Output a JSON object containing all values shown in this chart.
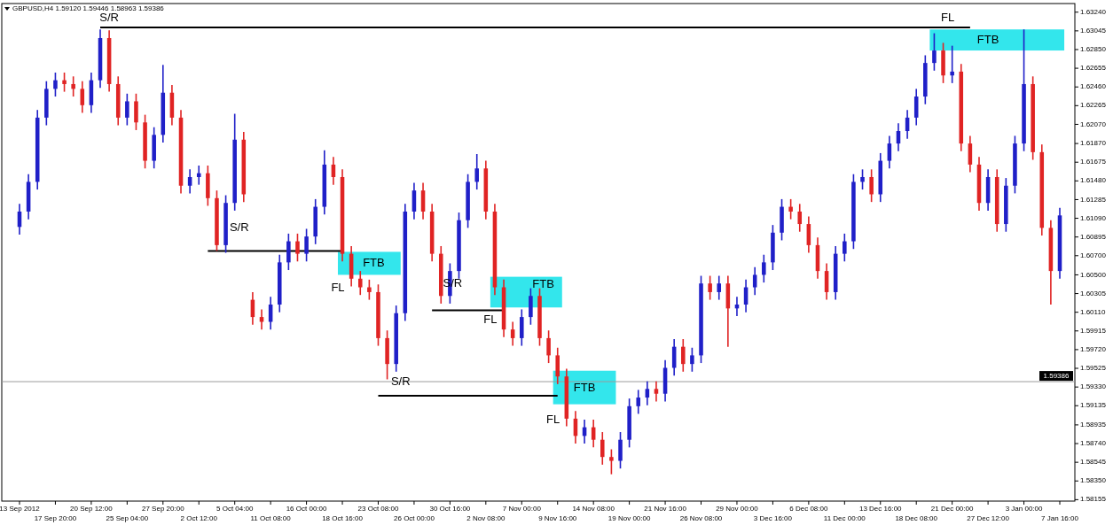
{
  "chart_data": {
    "type": "candlestick",
    "title": "GBPUSD,H4  1.59120 1.59446 1.58963 1.59386",
    "categories": [
      "13 Sep 2012",
      null,
      null,
      null,
      "17 Sep 20:00",
      null,
      null,
      null,
      "20 Sep 12:00",
      null,
      null,
      null,
      "25 Sep 04:00",
      null,
      null,
      null,
      "27 Sep 20:00",
      null,
      null,
      null,
      "2 Oct 12:00",
      null,
      null,
      null,
      "5 Oct 04:00",
      null,
      null,
      null,
      "11 Oct 08:00",
      null,
      null,
      null,
      "16 Oct 00:00",
      null,
      null,
      null,
      "18 Oct 16:00",
      null,
      null,
      null,
      "23 Oct 08:00",
      null,
      null,
      null,
      "26 Oct 00:00",
      null,
      null,
      null,
      "30 Oct 16:00",
      null,
      null,
      null,
      "2 Nov 08:00",
      null,
      null,
      null,
      "7 Nov 00:00",
      null,
      null,
      null,
      "9 Nov 16:00",
      null,
      null,
      null,
      "14 Nov 08:00",
      null,
      null,
      null,
      "19 Nov 00:00",
      null,
      null,
      null,
      "21 Nov 16:00",
      null,
      null,
      null,
      "26 Nov 08:00",
      null,
      null,
      null,
      "29 Nov 00:00",
      null,
      null,
      null,
      "3 Dec 16:00",
      null,
      null,
      null,
      "6 Dec 08:00",
      null,
      null,
      null,
      "11 Dec 00:00",
      null,
      null,
      null,
      "13 Dec 16:00",
      null,
      null,
      null,
      "18 Dec 08:00",
      null,
      null,
      null,
      "21 Dec 00:00",
      null,
      null,
      null,
      "27 Dec 12:00",
      null,
      null,
      null,
      "3 Jan 00:00",
      null,
      null,
      null,
      "7 Jan 16:00"
    ],
    "ohlc": [
      [
        1.61,
        1.6124,
        1.6092,
        1.6116
      ],
      [
        1.6116,
        1.6155,
        1.6108,
        1.6147
      ],
      [
        1.6147,
        1.6222,
        1.6139,
        1.6214
      ],
      [
        1.6214,
        1.6252,
        1.6206,
        1.6244
      ],
      [
        1.6244,
        1.6261,
        1.6236,
        1.6253
      ],
      [
        1.6253,
        1.6261,
        1.6241,
        1.6249
      ],
      [
        1.6249,
        1.6257,
        1.6236,
        1.6244
      ],
      [
        1.6244,
        1.6252,
        1.6219,
        1.6227
      ],
      [
        1.6227,
        1.6261,
        1.6219,
        1.6253
      ],
      [
        1.6253,
        1.6306,
        1.6245,
        1.6297
      ],
      [
        1.6297,
        1.6305,
        1.6241,
        1.6249
      ],
      [
        1.6249,
        1.6257,
        1.6206,
        1.6214
      ],
      [
        1.6214,
        1.6239,
        1.6206,
        1.6231
      ],
      [
        1.6231,
        1.6239,
        1.6201,
        1.6209
      ],
      [
        1.6209,
        1.6217,
        1.6161,
        1.6169
      ],
      [
        1.6169,
        1.6204,
        1.6161,
        1.6196
      ],
      [
        1.6196,
        1.6269,
        1.6188,
        1.624
      ],
      [
        1.624,
        1.6248,
        1.6206,
        1.6214
      ],
      [
        1.6214,
        1.6222,
        1.6135,
        1.6143
      ],
      [
        1.6143,
        1.616,
        1.6135,
        1.6152
      ],
      [
        1.6152,
        1.6164,
        1.6144,
        1.6156
      ],
      [
        1.6156,
        1.6164,
        1.6122,
        1.613
      ],
      [
        1.613,
        1.6138,
        1.6075,
        1.6081
      ],
      [
        1.6081,
        1.6133,
        1.6073,
        1.6125
      ],
      [
        1.6125,
        1.6218,
        1.6117,
        1.6191
      ],
      [
        1.6191,
        1.6199,
        1.6126,
        1.6134
      ],
      [
        1.6024,
        1.6032,
        1.5998,
        1.6006
      ],
      [
        1.6006,
        1.6014,
        1.5993,
        1.6001
      ],
      [
        1.6001,
        1.6027,
        1.5993,
        1.6019
      ],
      [
        1.6019,
        1.6071,
        1.6011,
        1.6063
      ],
      [
        1.6063,
        1.6093,
        1.6055,
        1.6085
      ],
      [
        1.6085,
        1.6093,
        1.6064,
        1.6072
      ],
      [
        1.6072,
        1.6098,
        1.6064,
        1.609
      ],
      [
        1.609,
        1.6129,
        1.6082,
        1.6121
      ],
      [
        1.6121,
        1.618,
        1.6113,
        1.6165
      ],
      [
        1.6165,
        1.6173,
        1.6144,
        1.6152
      ],
      [
        1.6152,
        1.616,
        1.6064,
        1.6072
      ],
      [
        1.6072,
        1.608,
        1.6038,
        1.6046
      ],
      [
        1.6046,
        1.6054,
        1.6029,
        1.6037
      ],
      [
        1.6037,
        1.6045,
        1.6024,
        1.6032
      ],
      [
        1.6032,
        1.604,
        1.5976,
        1.5984
      ],
      [
        1.5984,
        1.5992,
        1.5941,
        1.5957
      ],
      [
        1.5957,
        1.6018,
        1.5949,
        1.601
      ],
      [
        1.601,
        1.6124,
        1.6002,
        1.6116
      ],
      [
        1.6116,
        1.6146,
        1.6108,
        1.6138
      ],
      [
        1.6138,
        1.6146,
        1.6108,
        1.6116
      ],
      [
        1.6116,
        1.6124,
        1.6064,
        1.6072
      ],
      [
        1.6072,
        1.608,
        1.602,
        1.6028
      ],
      [
        1.6028,
        1.6062,
        1.602,
        1.6054
      ],
      [
        1.6054,
        1.6115,
        1.6046,
        1.6107
      ],
      [
        1.6107,
        1.6155,
        1.6099,
        1.6147
      ],
      [
        1.6147,
        1.6176,
        1.6139,
        1.6161
      ],
      [
        1.6161,
        1.6169,
        1.6108,
        1.6116
      ],
      [
        1.6116,
        1.6124,
        1.6029,
        1.6037
      ],
      [
        1.6037,
        1.6045,
        1.5985,
        1.5993
      ],
      [
        1.5993,
        1.6001,
        1.5976,
        1.5984
      ],
      [
        1.5984,
        1.6014,
        1.5976,
        1.6006
      ],
      [
        1.6006,
        1.6036,
        1.5998,
        1.6028
      ],
      [
        1.6028,
        1.6036,
        1.5976,
        1.5984
      ],
      [
        1.5984,
        1.5992,
        1.5958,
        1.5966
      ],
      [
        1.5966,
        1.5974,
        1.5936,
        1.5944
      ],
      [
        1.5944,
        1.5952,
        1.5892,
        1.59
      ],
      [
        1.59,
        1.5908,
        1.5874,
        1.5882
      ],
      [
        1.5882,
        1.5899,
        1.5874,
        1.5891
      ],
      [
        1.5891,
        1.5899,
        1.587,
        1.5878
      ],
      [
        1.5878,
        1.5886,
        1.5852,
        1.586
      ],
      [
        1.586,
        1.5868,
        1.5842,
        1.5856
      ],
      [
        1.5856,
        1.5886,
        1.5848,
        1.5878
      ],
      [
        1.5878,
        1.5921,
        1.587,
        1.5913
      ],
      [
        1.5913,
        1.593,
        1.5905,
        1.5922
      ],
      [
        1.5922,
        1.5939,
        1.5914,
        1.5931
      ],
      [
        1.5931,
        1.5939,
        1.5918,
        1.5926
      ],
      [
        1.5926,
        1.5961,
        1.5918,
        1.5953
      ],
      [
        1.5953,
        1.5983,
        1.5945,
        1.5975
      ],
      [
        1.5975,
        1.5983,
        1.5949,
        1.5957
      ],
      [
        1.5957,
        1.5974,
        1.5949,
        1.5966
      ],
      [
        1.5966,
        1.6049,
        1.5958,
        1.6041
      ],
      [
        1.6041,
        1.6049,
        1.6024,
        1.6032
      ],
      [
        1.6032,
        1.6049,
        1.6024,
        1.6041
      ],
      [
        1.6041,
        1.6049,
        1.5975,
        1.6015
      ],
      [
        1.6015,
        1.6027,
        1.6007,
        1.6019
      ],
      [
        1.6019,
        1.6045,
        1.6011,
        1.6037
      ],
      [
        1.6037,
        1.6058,
        1.6029,
        1.605
      ],
      [
        1.605,
        1.6071,
        1.6042,
        1.6063
      ],
      [
        1.6063,
        1.6102,
        1.6055,
        1.6094
      ],
      [
        1.6094,
        1.6129,
        1.6086,
        1.6121
      ],
      [
        1.6121,
        1.6129,
        1.6108,
        1.6116
      ],
      [
        1.6116,
        1.6124,
        1.6095,
        1.6103
      ],
      [
        1.6103,
        1.6111,
        1.6073,
        1.6081
      ],
      [
        1.6081,
        1.6089,
        1.6046,
        1.6054
      ],
      [
        1.6054,
        1.6062,
        1.6024,
        1.6032
      ],
      [
        1.6032,
        1.608,
        1.6024,
        1.6072
      ],
      [
        1.6072,
        1.6093,
        1.6064,
        1.6085
      ],
      [
        1.6085,
        1.6155,
        1.6077,
        1.6147
      ],
      [
        1.6147,
        1.616,
        1.6139,
        1.6152
      ],
      [
        1.6152,
        1.616,
        1.6126,
        1.6134
      ],
      [
        1.6134,
        1.6177,
        1.6126,
        1.6169
      ],
      [
        1.6169,
        1.6195,
        1.6161,
        1.6187
      ],
      [
        1.6187,
        1.6208,
        1.6179,
        1.62
      ],
      [
        1.62,
        1.6222,
        1.6192,
        1.6214
      ],
      [
        1.6214,
        1.6244,
        1.6206,
        1.6236
      ],
      [
        1.6236,
        1.6279,
        1.6228,
        1.6271
      ],
      [
        1.6271,
        1.6302,
        1.6263,
        1.6284
      ],
      [
        1.6284,
        1.6292,
        1.625,
        1.6258
      ],
      [
        1.6258,
        1.6289,
        1.625,
        1.6262
      ],
      [
        1.6262,
        1.627,
        1.6179,
        1.6187
      ],
      [
        1.6187,
        1.6195,
        1.6157,
        1.6165
      ],
      [
        1.6165,
        1.6173,
        1.6117,
        1.6125
      ],
      [
        1.6125,
        1.616,
        1.6117,
        1.6152
      ],
      [
        1.6152,
        1.616,
        1.6095,
        1.6103
      ],
      [
        1.6103,
        1.6151,
        1.6095,
        1.6143
      ],
      [
        1.6143,
        1.6195,
        1.6135,
        1.6187
      ],
      [
        1.6187,
        1.6306,
        1.6179,
        1.6249
      ],
      [
        1.6249,
        1.6257,
        1.617,
        1.6178
      ],
      [
        1.6178,
        1.6186,
        1.6091,
        1.6099
      ],
      [
        1.6099,
        1.6107,
        1.6019,
        1.6054
      ],
      [
        1.6054,
        1.612,
        1.6046,
        1.6112
      ]
    ],
    "colors": [
      "#2020c8",
      "#2020c8",
      "#2020c8",
      "#2020c8",
      "#2020c8",
      "#e02424",
      "#e02424",
      "#e02424",
      "#2020c8",
      "#2020c8",
      "#e02424",
      "#e02424",
      "#2020c8",
      "#e02424",
      "#e02424",
      "#2020c8",
      "#2020c8",
      "#e02424",
      "#e02424",
      "#2020c8",
      "#2020c8",
      "#e02424",
      "#e02424",
      "#2020c8",
      "#2020c8",
      "#e02424",
      "#e02424",
      "#e02424",
      "#2020c8",
      "#2020c8",
      "#2020c8",
      "#e02424",
      "#2020c8",
      "#2020c8",
      "#2020c8",
      "#e02424",
      "#e02424",
      "#e02424",
      "#e02424",
      "#e02424",
      "#e02424",
      "#e02424",
      "#2020c8",
      "#2020c8",
      "#2020c8",
      "#e02424",
      "#e02424",
      "#e02424",
      "#2020c8",
      "#2020c8",
      "#2020c8",
      "#2020c8",
      "#e02424",
      "#e02424",
      "#e02424",
      "#e02424",
      "#2020c8",
      "#2020c8",
      "#e02424",
      "#e02424",
      "#e02424",
      "#e02424",
      "#e02424",
      "#2020c8",
      "#e02424",
      "#e02424",
      "#e02424",
      "#2020c8",
      "#2020c8",
      "#2020c8",
      "#2020c8",
      "#e02424",
      "#2020c8",
      "#2020c8",
      "#e02424",
      "#2020c8",
      "#2020c8",
      "#e02424",
      "#2020c8",
      "#e02424",
      "#2020c8",
      "#2020c8",
      "#2020c8",
      "#2020c8",
      "#2020c8",
      "#2020c8",
      "#e02424",
      "#e02424",
      "#e02424",
      "#e02424",
      "#e02424",
      "#2020c8",
      "#2020c8",
      "#2020c8",
      "#2020c8",
      "#e02424",
      "#2020c8",
      "#2020c8",
      "#2020c8",
      "#2020c8",
      "#2020c8",
      "#2020c8",
      "#2020c8",
      "#e02424",
      "#2020c8",
      "#e02424",
      "#e02424",
      "#e02424",
      "#2020c8",
      "#e02424",
      "#2020c8",
      "#2020c8",
      "#2020c8",
      "#e02424",
      "#e02424",
      "#e02424",
      "#2020c8"
    ],
    "series": [
      {
        "type": "line",
        "color": "#000000",
        "values": [
          null,
          null,
          null,
          null,
          null,
          null,
          null,
          null,
          null,
          1.6308,
          1.6308,
          1.6308,
          1.6308,
          1.6308,
          1.6308,
          1.6308,
          1.6308,
          1.6308,
          1.6308,
          1.6308,
          1.6308,
          1.6308,
          1.6308,
          1.6308,
          1.6308,
          1.6308,
          1.6308,
          1.6308,
          1.6308,
          1.6308,
          1.6308,
          1.6308,
          1.6308,
          1.6308,
          1.6308,
          1.6308,
          1.6308,
          1.6308,
          1.6308,
          1.6308,
          1.6308,
          1.6308,
          1.6308,
          1.6308,
          1.6308,
          1.6308,
          1.6308,
          1.6308,
          1.6308,
          1.6308,
          1.6308,
          1.6308,
          1.6308,
          1.6308,
          1.6308,
          1.6308,
          1.6308,
          1.6308,
          1.6308,
          1.6308,
          1.6308,
          1.6308,
          1.6308,
          1.6308,
          1.6308,
          1.6308,
          1.6308,
          1.6308,
          1.6308,
          1.6308,
          1.6308,
          1.6308,
          1.6308,
          1.6308,
          1.6308,
          1.6308,
          1.6308,
          1.6308,
          1.6308,
          1.6308,
          1.6308,
          1.6308,
          1.6308,
          1.6308,
          1.6308,
          1.6308,
          1.6308,
          1.6308,
          1.6308,
          1.6308,
          1.6308,
          1.6308,
          1.6308,
          1.6308,
          1.6308,
          1.6308,
          1.6308,
          1.6308,
          1.6308,
          1.6308,
          1.6308,
          1.6308,
          1.6308,
          1.6308,
          1.6308,
          1.6308,
          1.6308,
          null,
          null,
          null,
          null,
          null,
          null,
          null,
          null,
          null,
          null
        ]
      },
      {
        "type": "line",
        "color": "#000000",
        "values": [
          null,
          null,
          null,
          null,
          null,
          null,
          null,
          null,
          null,
          null,
          null,
          null,
          null,
          null,
          null,
          null,
          null,
          null,
          null,
          null,
          null,
          1.6075,
          1.6075,
          1.6075,
          1.6075,
          1.6075,
          1.6075,
          1.6075,
          1.6075,
          1.6075,
          1.6075,
          1.6075,
          1.6075,
          1.6075,
          1.6075,
          1.6075,
          1.6075,
          null,
          null,
          null,
          null,
          null,
          null,
          null,
          null,
          null,
          null,
          null,
          null,
          null,
          null,
          null,
          null,
          null,
          null,
          null,
          null,
          null,
          null,
          null,
          null,
          null,
          null,
          null,
          null,
          null,
          null,
          null,
          null,
          null,
          null,
          null,
          null,
          null,
          null,
          null,
          null,
          null,
          null,
          null,
          null,
          null,
          null,
          null,
          null,
          null,
          null,
          null,
          null,
          null,
          null,
          null,
          null,
          null,
          null,
          null,
          null,
          null,
          null,
          null,
          null,
          null,
          null,
          null,
          null,
          null,
          null,
          null,
          null,
          null,
          null,
          null,
          null,
          null,
          null,
          null,
          null
        ]
      },
      {
        "type": "line",
        "color": "#000000",
        "values": [
          null,
          null,
          null,
          null,
          null,
          null,
          null,
          null,
          null,
          null,
          null,
          null,
          null,
          null,
          null,
          null,
          null,
          null,
          null,
          null,
          null,
          null,
          null,
          null,
          null,
          null,
          null,
          null,
          null,
          null,
          null,
          null,
          null,
          null,
          null,
          null,
          null,
          null,
          null,
          null,
          null,
          null,
          null,
          null,
          null,
          null,
          1.6013,
          1.6013,
          1.6013,
          1.6013,
          1.6013,
          1.6013,
          1.6013,
          1.6013,
          1.6013,
          null,
          null,
          null,
          null,
          null,
          null,
          null,
          null,
          null,
          null,
          null,
          null,
          null,
          null,
          null,
          null,
          null,
          null,
          null,
          null,
          null,
          null,
          null,
          null,
          null,
          null,
          null,
          null,
          null,
          null,
          null,
          null,
          null,
          null,
          null,
          null,
          null,
          null,
          null,
          null,
          null,
          null,
          null,
          null,
          null,
          null,
          null,
          null,
          null,
          null,
          null,
          null,
          null,
          null,
          null,
          null,
          null,
          null,
          null,
          null,
          null,
          null
        ]
      },
      {
        "type": "line",
        "color": "#000000",
        "values": [
          null,
          null,
          null,
          null,
          null,
          null,
          null,
          null,
          null,
          null,
          null,
          null,
          null,
          null,
          null,
          null,
          null,
          null,
          null,
          null,
          null,
          null,
          null,
          null,
          null,
          null,
          null,
          null,
          null,
          null,
          null,
          null,
          null,
          null,
          null,
          null,
          null,
          null,
          null,
          null,
          1.5924,
          1.5924,
          1.5924,
          1.5924,
          1.5924,
          1.5924,
          1.5924,
          1.5924,
          1.5924,
          1.5924,
          1.5924,
          1.5924,
          1.5924,
          1.5924,
          1.5924,
          1.5924,
          1.5924,
          1.5924,
          1.5924,
          1.5924,
          1.5924,
          null,
          null,
          null,
          null,
          null,
          null,
          null,
          null,
          null,
          null,
          null,
          null,
          null,
          null,
          null,
          null,
          null,
          null,
          null,
          null,
          null,
          null,
          null,
          null,
          null,
          null,
          null,
          null,
          null,
          null,
          null,
          null,
          null,
          null,
          null,
          null,
          null,
          null,
          null,
          null,
          null,
          null,
          null,
          null,
          null,
          null,
          null,
          null,
          null,
          null,
          null,
          null,
          null,
          null,
          null,
          null
        ]
      }
    ],
    "ylim": [
      1.5814,
      1.6333
    ],
    "yticks": [
      {
        "value": 1.6324,
        "label": "1.63240"
      },
      {
        "value": 1.63045,
        "label": "1.63045"
      },
      {
        "value": 1.6285,
        "label": "1.62850"
      },
      {
        "value": 1.62655,
        "label": "1.62655"
      },
      {
        "value": 1.6246,
        "label": "1.62460"
      },
      {
        "value": 1.62265,
        "label": "1.62265"
      },
      {
        "value": 1.6207,
        "label": "1.62070"
      },
      {
        "value": 1.6187,
        "label": "1.61870"
      },
      {
        "value": 1.61675,
        "label": "1.61675"
      },
      {
        "value": 1.6148,
        "label": "1.61480"
      },
      {
        "value": 1.61285,
        "label": "1.61285"
      },
      {
        "value": 1.6109,
        "label": "1.61090"
      },
      {
        "value": 1.60895,
        "label": "1.60895"
      },
      {
        "value": 1.607,
        "label": "1.60700"
      },
      {
        "value": 1.605,
        "label": "1.60500"
      },
      {
        "value": 1.60305,
        "label": "1.60305"
      },
      {
        "value": 1.6011,
        "label": "1.60110"
      },
      {
        "value": 1.59915,
        "label": "1.59915"
      },
      {
        "value": 1.5972,
        "label": "1.59720"
      },
      {
        "value": 1.59525,
        "label": "1.59525"
      },
      {
        "value": 1.5933,
        "label": "1.59330"
      },
      {
        "value": 1.59135,
        "label": "1.59135"
      },
      {
        "value": 1.58935,
        "label": "1.58935"
      },
      {
        "value": 1.5874,
        "label": "1.58740"
      },
      {
        "value": 1.58545,
        "label": "1.58545"
      },
      {
        "value": 1.5835,
        "label": "1.58350"
      },
      {
        "value": 1.58155,
        "label": "1.58155"
      }
    ],
    "ref_lines": [
      {
        "axis": "y",
        "value": 1.59386,
        "label": "1.59386",
        "color": "#9a9a9a"
      }
    ],
    "annotations": [
      "S/R",
      "S/R",
      "S/R",
      "S/R",
      "FL",
      "FL",
      "FL",
      "FL",
      "FTB",
      "FTB",
      "FTB",
      "FTB"
    ]
  }
}
